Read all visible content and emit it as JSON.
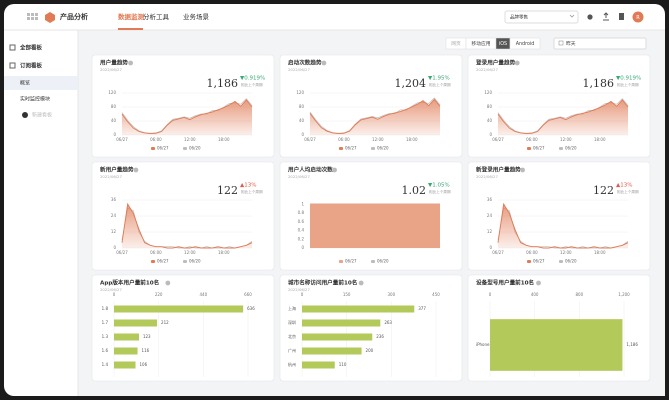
{
  "nav": {
    "brand": "产品分析",
    "menu": [
      "数据监测",
      "分析工具",
      "业务场景"
    ],
    "project": "品牌零售",
    "avatar": "R"
  },
  "sidebar": {
    "all": "全部看板",
    "subscribed": "订阅看板",
    "boards": [
      "概览",
      "实时监控模块"
    ],
    "new_board": "新建看板"
  },
  "toolbar": {
    "platforms": [
      "网页",
      "移动应用",
      "iOS",
      "Android"
    ],
    "date_range": "昨天"
  },
  "chart_data": [
    {
      "type": "line",
      "title": "用户量趋势",
      "subtitle": "2022/06/27",
      "kpi": "1,186",
      "change": "▼0.919%",
      "change_color": "#3aa876",
      "compare_label": "相比上个周期",
      "categories": [
        "06/27",
        null,
        null,
        null,
        null,
        null,
        "06:00",
        null,
        null,
        null,
        null,
        null,
        "12:00",
        null,
        null,
        null,
        null,
        null,
        "18:00",
        null,
        null,
        null,
        null,
        null
      ],
      "series": [
        {
          "name": "06/27",
          "color": "#e07b55",
          "values": [
            60,
            38,
            20,
            10,
            6,
            4,
            5,
            10,
            28,
            42,
            46,
            50,
            44,
            52,
            58,
            62,
            66,
            72,
            78,
            86,
            96,
            82,
            100,
            80
          ]
        },
        {
          "name": "06/20",
          "color": "#bdbdbd",
          "values": [
            64,
            42,
            24,
            12,
            7,
            5,
            6,
            12,
            30,
            45,
            48,
            52,
            48,
            55,
            60,
            60,
            70,
            70,
            80,
            90,
            92,
            88,
            104,
            84
          ]
        }
      ],
      "ylim": [
        0,
        120
      ],
      "yticks": [
        0,
        40,
        80,
        120
      ],
      "grid": true
    },
    {
      "type": "line",
      "title": "启动次数趋势",
      "subtitle": "2022/06/27",
      "kpi": "1,204",
      "change": "▼1.95%",
      "change_color": "#3aa876",
      "compare_label": "相比上个周期",
      "categories": [
        "06/27",
        null,
        null,
        null,
        null,
        null,
        "06:00",
        null,
        null,
        null,
        null,
        null,
        "12:00",
        null,
        null,
        null,
        null,
        null,
        "18:00",
        null,
        null,
        null,
        null,
        null
      ],
      "series": [
        {
          "name": "06/27",
          "color": "#e07b55",
          "values": [
            62,
            40,
            21,
            11,
            6,
            4,
            5,
            11,
            29,
            43,
            47,
            51,
            45,
            53,
            59,
            63,
            67,
            73,
            80,
            88,
            98,
            84,
            102,
            82
          ]
        },
        {
          "name": "06/20",
          "color": "#bdbdbd",
          "values": [
            66,
            44,
            25,
            13,
            7,
            5,
            6,
            13,
            31,
            46,
            49,
            53,
            49,
            56,
            61,
            61,
            72,
            71,
            82,
            92,
            94,
            90,
            106,
            86
          ]
        }
      ],
      "ylim": [
        0,
        120
      ],
      "yticks": [
        0,
        40,
        80,
        120
      ],
      "grid": true
    },
    {
      "type": "line",
      "title": "登录用户量趋势",
      "subtitle": "2022/06/27",
      "kpi": "1,186",
      "change": "▼0.919%",
      "change_color": "#3aa876",
      "compare_label": "相比上个周期",
      "categories": [
        "06/27",
        null,
        null,
        null,
        null,
        null,
        "06:00",
        null,
        null,
        null,
        null,
        null,
        "12:00",
        null,
        null,
        null,
        null,
        null,
        "18:00",
        null,
        null,
        null,
        null,
        null
      ],
      "series": [
        {
          "name": "06/27",
          "color": "#e07b55",
          "values": [
            60,
            38,
            20,
            10,
            6,
            4,
            5,
            10,
            28,
            42,
            46,
            50,
            44,
            52,
            58,
            62,
            66,
            72,
            78,
            86,
            96,
            82,
            100,
            80
          ]
        },
        {
          "name": "06/20",
          "color": "#bdbdbd",
          "values": [
            64,
            42,
            24,
            12,
            7,
            5,
            6,
            12,
            30,
            45,
            48,
            52,
            48,
            55,
            60,
            60,
            70,
            70,
            80,
            90,
            92,
            88,
            104,
            84
          ]
        }
      ],
      "ylim": [
        0,
        120
      ],
      "yticks": [
        0,
        40,
        80,
        120
      ],
      "grid": true
    },
    {
      "type": "line",
      "title": "新用户量趋势",
      "subtitle": "2022/06/27",
      "kpi": "122",
      "change": "▲13%",
      "change_color": "#e05b4b",
      "compare_label": "相比上个周期",
      "categories": [
        "06/27",
        null,
        null,
        null,
        null,
        null,
        "06:00",
        null,
        null,
        null,
        null,
        null,
        "12:00",
        null,
        null,
        null,
        null,
        null,
        "18:00",
        null,
        null,
        null,
        null,
        null
      ],
      "series": [
        {
          "name": "06/27",
          "color": "#e07b55",
          "values": [
            4,
            33,
            26,
            14,
            4,
            2,
            1,
            1,
            0,
            0,
            1,
            0,
            0,
            1,
            0,
            0,
            0,
            1,
            0,
            0,
            0,
            1,
            2,
            4
          ]
        },
        {
          "name": "06/20",
          "color": "#bdbdbd",
          "values": [
            6,
            30,
            28,
            12,
            5,
            2,
            1,
            1,
            1,
            1,
            0,
            0,
            1,
            0,
            0,
            1,
            0,
            0,
            0,
            1,
            0,
            1,
            2,
            5
          ]
        }
      ],
      "ylim": [
        0,
        36
      ],
      "yticks": [
        0,
        12,
        24,
        36
      ],
      "grid": true
    },
    {
      "type": "bar",
      "title": "用户人均启动次数",
      "subtitle": "2022/06/27",
      "kpi": "1.02",
      "change": "▼1.05%",
      "change_color": "#3aa876",
      "compare_label": "相比上个周期",
      "categories": [
        null
      ],
      "series": [
        {
          "name": "06/27",
          "color": "#e9a387",
          "values": [
            1.02
          ]
        },
        {
          "name": "06/20",
          "color": "#bdbdbd",
          "values": [
            null
          ]
        }
      ],
      "ylim": [
        0,
        1.1
      ],
      "yticks": [
        0,
        0.2,
        0.4,
        0.6,
        0.8,
        1
      ],
      "grid": true
    },
    {
      "type": "line",
      "title": "新登录用户量趋势",
      "subtitle": "2022/06/27",
      "kpi": "122",
      "change": "▲13%",
      "change_color": "#e05b4b",
      "compare_label": "相比上个周期",
      "categories": [
        "06/27",
        null,
        null,
        null,
        null,
        null,
        "06:00",
        null,
        null,
        null,
        null,
        null,
        "12:00",
        null,
        null,
        null,
        null,
        null,
        "18:00",
        null,
        null,
        null,
        null,
        null
      ],
      "series": [
        {
          "name": "06/27",
          "color": "#e07b55",
          "values": [
            4,
            33,
            26,
            14,
            4,
            2,
            1,
            1,
            0,
            0,
            1,
            0,
            0,
            1,
            0,
            0,
            0,
            1,
            0,
            0,
            0,
            1,
            2,
            4
          ]
        },
        {
          "name": "06/20",
          "color": "#bdbdbd",
          "values": [
            6,
            30,
            28,
            12,
            5,
            2,
            1,
            1,
            1,
            1,
            0,
            0,
            1,
            0,
            0,
            1,
            0,
            0,
            0,
            1,
            0,
            1,
            2,
            5
          ]
        }
      ],
      "ylim": [
        0,
        36
      ],
      "yticks": [
        0,
        12,
        24,
        36
      ],
      "grid": true
    },
    {
      "type": "hbar",
      "title": "App版本用户量前10名",
      "subtitle": "2022/06/27",
      "categories": [
        "1.8",
        "1.7",
        "1.3",
        "1.6",
        "1.4"
      ],
      "values": [
        636,
        212,
        123,
        116,
        106
      ],
      "color": "#b3c95a",
      "xlim": [
        0,
        660
      ],
      "xticks": [
        0,
        220,
        440,
        660
      ],
      "grid": true
    },
    {
      "type": "hbar",
      "title": "城市名称访问用户量前10名",
      "subtitle": "2022/06/27",
      "categories": [
        "上海",
        "深圳",
        "北京",
        "广州",
        "杭州"
      ],
      "values": [
        377,
        263,
        236,
        200,
        110
      ],
      "color": "#b3c95a",
      "xlim": [
        0,
        450
      ],
      "xticks": [
        0,
        150,
        300,
        450
      ],
      "grid": true
    },
    {
      "type": "hbar",
      "title": "设备型号用户量前10名",
      "categories": [
        "iPhone"
      ],
      "values": [
        1186
      ],
      "value_labels": [
        "1,186"
      ],
      "color": "#b3c95a",
      "xlim": [
        0,
        1200
      ],
      "xticks": [
        0,
        400,
        800,
        {
          "value": 1200,
          "label": "1,200"
        }
      ],
      "grid": true
    }
  ]
}
